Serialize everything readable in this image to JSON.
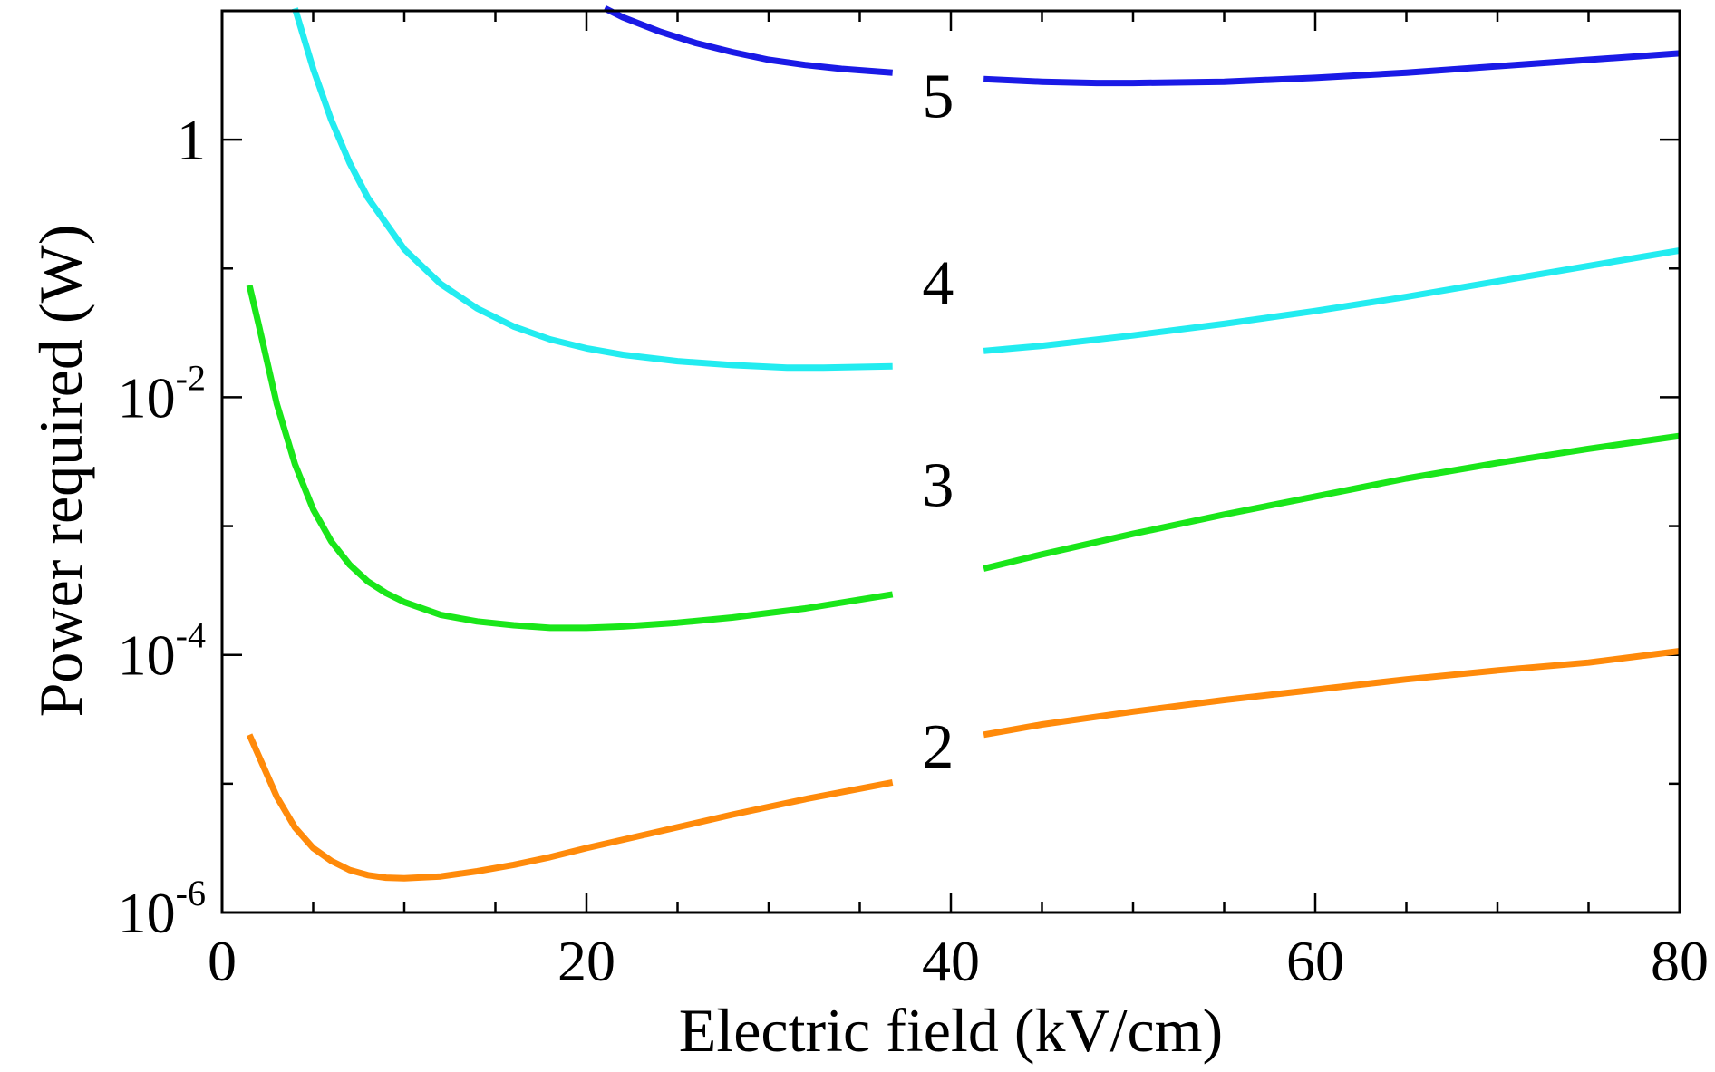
{
  "chart_data": {
    "type": "line",
    "title": "",
    "xlabel": "Electric field (kV/cm)",
    "ylabel": "Power required (W)",
    "xlim": [
      0,
      80
    ],
    "ylim_log10": [
      -6,
      1
    ],
    "y_scale": "log",
    "grid": false,
    "x_ticks": [
      {
        "value": 0,
        "label": "0"
      },
      {
        "value": 20,
        "label": "20"
      },
      {
        "value": 40,
        "label": "40"
      },
      {
        "value": 60,
        "label": "60"
      },
      {
        "value": 80,
        "label": "80"
      }
    ],
    "y_ticks": [
      {
        "log10": -6,
        "base": "10",
        "exp": "-6"
      },
      {
        "log10": -4,
        "base": "10",
        "exp": "-4"
      },
      {
        "log10": -2,
        "base": "10",
        "exp": "-2"
      },
      {
        "log10": 0,
        "base": "1",
        "exp": ""
      }
    ],
    "label_gap": [
      36.8,
      41.8
    ],
    "series": [
      {
        "name": "2",
        "color": "#ff8a0a",
        "label_at": {
          "x": 39.3,
          "log10": -4.7
        },
        "points": [
          [
            1.5,
            -4.62
          ],
          [
            2,
            -4.78
          ],
          [
            3,
            -5.1
          ],
          [
            4,
            -5.34
          ],
          [
            5,
            -5.5
          ],
          [
            6,
            -5.6
          ],
          [
            7,
            -5.67
          ],
          [
            8,
            -5.71
          ],
          [
            9,
            -5.73
          ],
          [
            10,
            -5.735
          ],
          [
            12,
            -5.72
          ],
          [
            14,
            -5.68
          ],
          [
            16,
            -5.63
          ],
          [
            18,
            -5.57
          ],
          [
            20,
            -5.5
          ],
          [
            24,
            -5.37
          ],
          [
            28,
            -5.24
          ],
          [
            32,
            -5.12
          ],
          [
            36.8,
            -4.99
          ],
          [
            41.8,
            -4.62
          ],
          [
            45,
            -4.54
          ],
          [
            50,
            -4.44
          ],
          [
            55,
            -4.35
          ],
          [
            60,
            -4.27
          ],
          [
            65,
            -4.19
          ],
          [
            70,
            -4.12
          ],
          [
            75,
            -4.06
          ],
          [
            80,
            -3.97
          ]
        ]
      },
      {
        "name": "3",
        "color": "#19e619",
        "label_at": {
          "x": 39.3,
          "log10": -2.67
        },
        "points": [
          [
            1.5,
            -1.13
          ],
          [
            2,
            -1.43
          ],
          [
            3,
            -2.05
          ],
          [
            4,
            -2.52
          ],
          [
            5,
            -2.87
          ],
          [
            6,
            -3.12
          ],
          [
            7,
            -3.3
          ],
          [
            8,
            -3.43
          ],
          [
            9,
            -3.52
          ],
          [
            10,
            -3.59
          ],
          [
            12,
            -3.69
          ],
          [
            14,
            -3.74
          ],
          [
            16,
            -3.77
          ],
          [
            18,
            -3.79
          ],
          [
            20,
            -3.79
          ],
          [
            22,
            -3.78
          ],
          [
            25,
            -3.75
          ],
          [
            28,
            -3.71
          ],
          [
            32,
            -3.64
          ],
          [
            36.8,
            -3.53
          ],
          [
            41.8,
            -3.33
          ],
          [
            45,
            -3.22
          ],
          [
            50,
            -3.06
          ],
          [
            55,
            -2.91
          ],
          [
            60,
            -2.77
          ],
          [
            65,
            -2.63
          ],
          [
            70,
            -2.51
          ],
          [
            75,
            -2.4
          ],
          [
            80,
            -2.3
          ]
        ]
      },
      {
        "name": "4",
        "color": "#22ecf0",
        "label_at": {
          "x": 39.3,
          "log10": -1.1
        },
        "points": [
          [
            4,
            1.02
          ],
          [
            5,
            0.55
          ],
          [
            6,
            0.15
          ],
          [
            7,
            -0.18
          ],
          [
            8,
            -0.45
          ],
          [
            10,
            -0.85
          ],
          [
            12,
            -1.12
          ],
          [
            14,
            -1.31
          ],
          [
            16,
            -1.45
          ],
          [
            18,
            -1.55
          ],
          [
            20,
            -1.62
          ],
          [
            22,
            -1.67
          ],
          [
            25,
            -1.72
          ],
          [
            28,
            -1.75
          ],
          [
            31,
            -1.77
          ],
          [
            33,
            -1.77
          ],
          [
            36.8,
            -1.76
          ],
          [
            41.8,
            -1.64
          ],
          [
            45,
            -1.6
          ],
          [
            50,
            -1.52
          ],
          [
            55,
            -1.43
          ],
          [
            60,
            -1.33
          ],
          [
            65,
            -1.22
          ],
          [
            70,
            -1.1
          ],
          [
            75,
            -0.98
          ],
          [
            80,
            -0.86
          ]
        ]
      },
      {
        "name": "5",
        "color": "#1a1ae6",
        "label_at": {
          "x": 39.3,
          "log10": 0.35
        },
        "points": [
          [
            21,
            1.02
          ],
          [
            22,
            0.95
          ],
          [
            24,
            0.84
          ],
          [
            26,
            0.75
          ],
          [
            28,
            0.68
          ],
          [
            30,
            0.62
          ],
          [
            32,
            0.58
          ],
          [
            34,
            0.55
          ],
          [
            36.8,
            0.52
          ],
          [
            41.8,
            0.47
          ],
          [
            45,
            0.45
          ],
          [
            48,
            0.44
          ],
          [
            50,
            0.44
          ],
          [
            55,
            0.45
          ],
          [
            60,
            0.48
          ],
          [
            65,
            0.52
          ],
          [
            70,
            0.57
          ],
          [
            75,
            0.62
          ],
          [
            80,
            0.67
          ]
        ]
      }
    ]
  }
}
